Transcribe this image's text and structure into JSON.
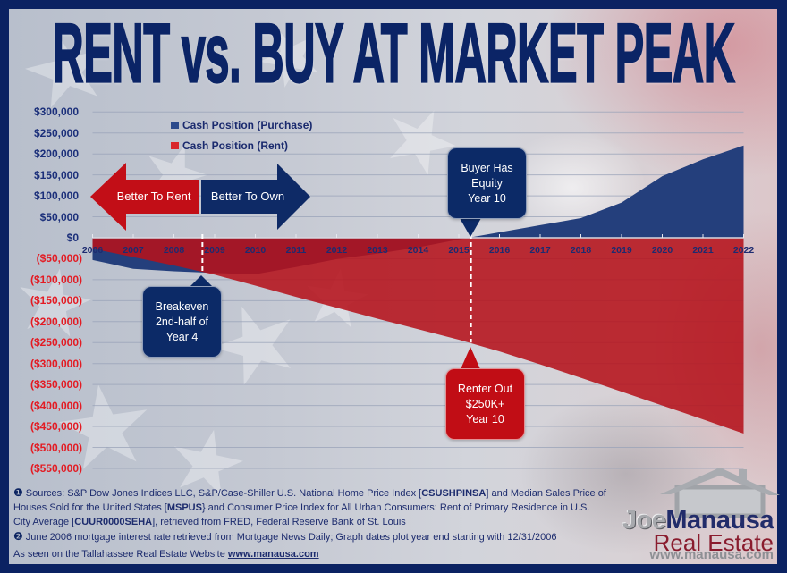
{
  "title": "RENT vs. BUY AT MARKET PEAK",
  "legend": [
    {
      "label": "Cash Position (Purchase)",
      "color": "#2b4a8c"
    },
    {
      "label": "Cash Position (Rent)",
      "color": "#d8262c"
    }
  ],
  "arrows": {
    "left_label": "Better To Rent",
    "right_label": "Better To Own",
    "left_color": "#c20e17",
    "right_color": "#0e2a66"
  },
  "callouts": {
    "breakeven": {
      "lines": [
        "Breakeven",
        "2nd-half of",
        "Year 4"
      ]
    },
    "buyer_equity": {
      "lines": [
        "Buyer Has",
        "Equity",
        "Year 10"
      ]
    },
    "renter_out": {
      "lines": [
        "Renter Out",
        "$250K+",
        "Year 10"
      ]
    }
  },
  "chart_data": {
    "type": "area",
    "title": "RENT vs. BUY AT MARKET PEAK",
    "xlabel": "",
    "ylabel": "",
    "categories": [
      "2006",
      "2007",
      "2008",
      "2009",
      "2010",
      "2011",
      "2012",
      "2013",
      "2014",
      "2015",
      "2016",
      "2017",
      "2018",
      "2019",
      "2020",
      "2021",
      "2022"
    ],
    "series": [
      {
        "name": "Cash Position (Purchase)",
        "color": "#243f7c",
        "values": [
          -53000,
          -74000,
          -80000,
          -84000,
          -87000,
          -70000,
          -51000,
          -38000,
          -23000,
          -4000,
          13000,
          30000,
          47000,
          84000,
          147000,
          187000,
          220000
        ]
      },
      {
        "name": "Cash Position (Rent)",
        "color": "#b5121b",
        "values": [
          -26000,
          -46000,
          -66000,
          -88000,
          -114000,
          -141000,
          -167000,
          -193000,
          -218000,
          -243000,
          -271000,
          -302000,
          -334000,
          -367000,
          -400000,
          -433000,
          -467000
        ]
      }
    ],
    "ylim": [
      -550000,
      300000
    ],
    "ytick_step": 50000,
    "yticks": [
      300000,
      250000,
      200000,
      150000,
      100000,
      50000,
      0,
      -50000,
      -100000,
      -150000,
      -200000,
      -250000,
      -300000,
      -350000,
      -400000,
      -450000,
      -500000,
      -550000
    ],
    "ytick_labels": [
      "$300,000",
      "$250,000",
      "$200,000",
      "$150,000",
      "$100,000",
      "$50,000",
      "$0",
      "($50,000)",
      "($100,000)",
      "($150,000)",
      "($200,000)",
      "($250,000)",
      "($300,000)",
      "($350,000)",
      "($400,000)",
      "($450,000)",
      "($500,000)",
      "($550,000)"
    ],
    "grid": true,
    "legend_position": "top-left inside plot",
    "annotations": [
      {
        "label": "Breakeven 2nd-half of Year 4",
        "x": 2008.7,
        "y": -80000,
        "marker": "dashed-vertical"
      },
      {
        "label": "Buyer Has Equity Year 10",
        "x": 2015.3,
        "y": 0,
        "marker": "dashed-vertical"
      },
      {
        "label": "Renter Out $250K+ Year 10",
        "x": 2015.3,
        "y": -250000
      },
      {
        "label": "Better To Rent",
        "type": "arrow-left"
      },
      {
        "label": "Better To Own",
        "type": "arrow-right"
      }
    ]
  },
  "footer": {
    "note1": {
      "icon": "❶",
      "line1": {
        "pre": "Sources: S&P Dow Jones Indices LLC, S&P/Case-Shiller U.S. National Home Price Index [",
        "code": "CSUSHPINSA",
        "post": "] and Median Sales Price of"
      },
      "line2": {
        "pre": "Houses Sold for the United States [",
        "code": "MSPUS",
        "post": "} and Consumer Price Index for All Urban Consumers: Rent of Primary Residence in U.S."
      },
      "line3": {
        "pre": "City Average [",
        "code": "CUUR0000SEHA",
        "post": "], retrieved from FRED, Federal Reserve Bank of St. Louis"
      }
    },
    "note2": {
      "icon": "❷",
      "text": "June 2006 mortgage interest rate retrieved from Mortgage News Daily; Graph dates plot year end starting with 12/31/2006"
    },
    "seen_on": {
      "text": "As seen on the Tallahassee Real Estate Website ",
      "link": "www.manausa.com"
    }
  },
  "logo": {
    "first": "Joe",
    "last": "Manausa",
    "sub": "Real Estate",
    "url": "www.manausa.com"
  },
  "colors": {
    "frame_navy": "#0b2262",
    "title_navy": "#0b2466",
    "callout_navy": "#0c2a67",
    "callout_red": "#c10d15",
    "axis_label_positive": "#1b2f7a",
    "axis_label_negative": "#e31b23"
  }
}
